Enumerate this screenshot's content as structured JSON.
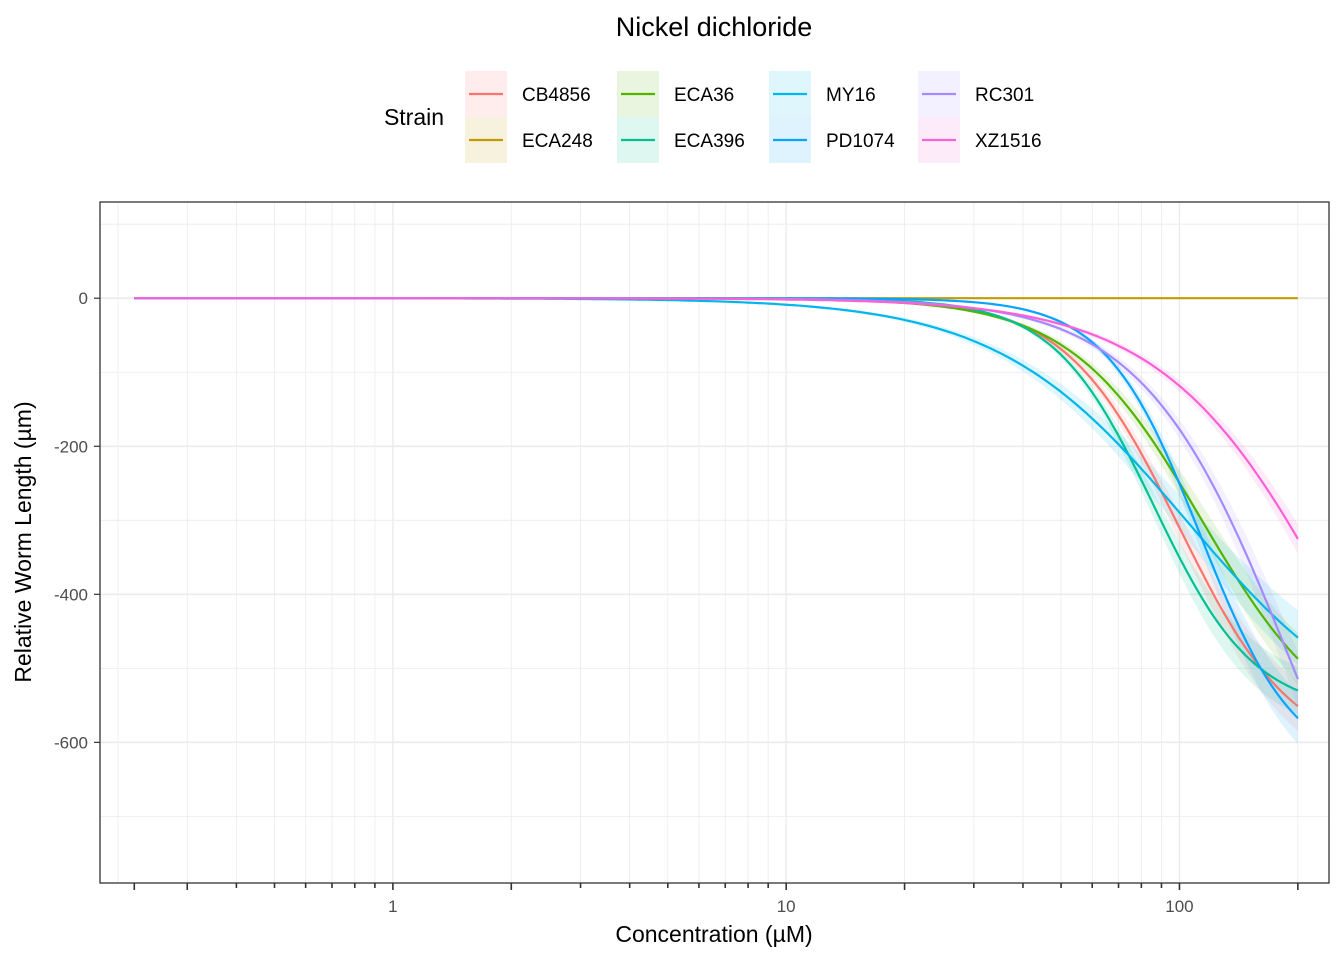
{
  "chart_data": {
    "type": "line",
    "title": "Nickel dichloride",
    "xlabel": "Concentration (µM)",
    "ylabel": "Relative Worm Length (µm)",
    "x_scale": "log10",
    "xlim": [
      0.18,
      240
    ],
    "ylim": [
      -790,
      130
    ],
    "x_ticks": [
      1,
      10,
      100
    ],
    "x_tick_labels": [
      "1",
      "10",
      "100"
    ],
    "y_ticks": [
      0,
      -200,
      -400,
      -600
    ],
    "y_tick_labels": [
      "0",
      "-200",
      "-400",
      "-600"
    ],
    "grid": true,
    "legend": {
      "title": "Strain",
      "placement": "top",
      "columns": [
        [
          "CB4856",
          "ECA248"
        ],
        [
          "ECA36",
          "ECA396"
        ],
        [
          "MY16",
          "PD1074"
        ],
        [
          "RC301",
          "XZ1516"
        ]
      ]
    },
    "series": [
      {
        "name": "CB4856",
        "color": "#F8766D",
        "x_start": 0.22,
        "x_end": 200,
        "top": 0,
        "bottom": -620,
        "ec50": 100,
        "hill": 3.0,
        "band": 12
      },
      {
        "name": "ECA248",
        "color": "#C49A00",
        "x_start": 0.22,
        "x_end": 200,
        "top": 0,
        "bottom": 0,
        "ec50": 100,
        "hill": 1.0,
        "band": 2
      },
      {
        "name": "ECA36",
        "color": "#53B400",
        "x_start": 0.22,
        "x_end": 200,
        "top": 0,
        "bottom": -600,
        "ec50": 114,
        "hill": 2.6,
        "band": 14
      },
      {
        "name": "ECA396",
        "color": "#00C094",
        "x_start": 0.22,
        "x_end": 200,
        "top": 0,
        "bottom": -560,
        "ec50": 86,
        "hill": 3.4,
        "band": 12
      },
      {
        "name": "MY16",
        "color": "#00B6EB",
        "x_start": 0.22,
        "x_end": 200,
        "top": 0,
        "bottom": -600,
        "ec50": 104,
        "hill": 1.8,
        "band": 16
      },
      {
        "name": "PD1074",
        "color": "#06A4FF",
        "x_start": 0.22,
        "x_end": 200,
        "top": 0,
        "bottom": -640,
        "ec50": 113,
        "hill": 3.6,
        "band": 12
      },
      {
        "name": "RC301",
        "color": "#A58AFF",
        "x_start": 0.22,
        "x_end": 200,
        "top": 0,
        "bottom": -1000,
        "ec50": 195,
        "hill": 2.3,
        "band": 14
      },
      {
        "name": "XZ1516",
        "color": "#FB61D7",
        "x_start": 0.22,
        "x_end": 200,
        "top": 0,
        "bottom": -900,
        "ec50": 270,
        "hill": 1.9,
        "band": 12
      }
    ]
  }
}
